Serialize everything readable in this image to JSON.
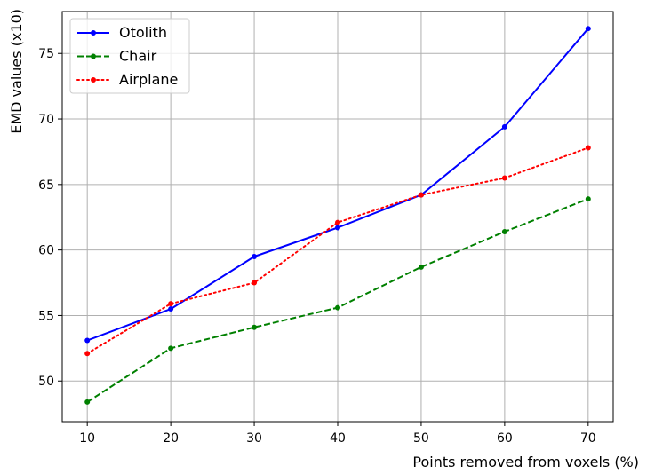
{
  "chart_data": {
    "type": "line",
    "xlabel": "Points removed from voxels (%)",
    "ylabel": "EMD values (x10)",
    "x": [
      10,
      20,
      30,
      40,
      50,
      60,
      70
    ],
    "xticks": [
      10,
      20,
      30,
      40,
      50,
      60,
      70
    ],
    "yticks": [
      50,
      55,
      60,
      65,
      70,
      75
    ],
    "xlim": [
      7,
      73
    ],
    "ylim": [
      46.9,
      78.2
    ],
    "grid": true,
    "legend_position": "top-left",
    "series": [
      {
        "name": "Otolith",
        "color": "#0000ff",
        "style": "solid",
        "values": [
          53.1,
          55.5,
          59.5,
          61.7,
          64.2,
          69.4,
          76.9
        ]
      },
      {
        "name": "Chair",
        "color": "#008000",
        "style": "dashed",
        "values": [
          48.4,
          52.5,
          54.1,
          55.6,
          58.7,
          61.4,
          63.9
        ]
      },
      {
        "name": "Airplane",
        "color": "#ff0000",
        "style": "dotted",
        "values": [
          52.1,
          55.9,
          57.5,
          62.1,
          64.2,
          65.5,
          67.8
        ]
      }
    ]
  }
}
